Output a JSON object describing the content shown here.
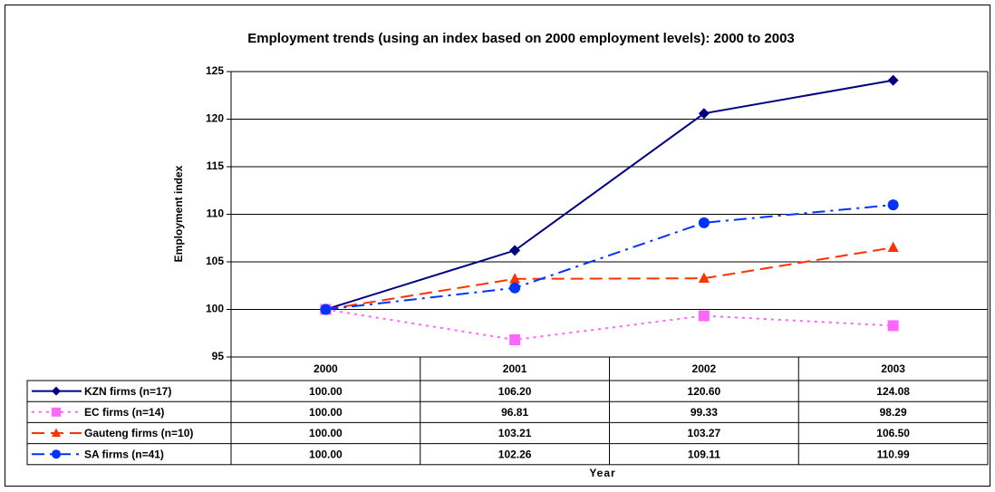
{
  "chart_data": {
    "type": "line",
    "title": "Employment trends (using an index based on 2000 employment levels): 2000 to 2003",
    "y_label": "Employment index",
    "x_label": "Year",
    "categories": [
      "2000",
      "2001",
      "2002",
      "2003"
    ],
    "ylim": [
      95,
      125
    ],
    "yticks": [
      95,
      100,
      105,
      110,
      115,
      120,
      125
    ],
    "grid": true,
    "series": [
      {
        "name": "KZN firms (n=17)",
        "color": "#000080",
        "line_style": "solid",
        "marker": "diamond",
        "values": [
          100,
          106.2,
          120.6,
          124.08
        ],
        "value_labels": [
          "100.00",
          "106.20",
          "120.60",
          "124.08"
        ]
      },
      {
        "name": "EC firms (n=14)",
        "color": "#ff66ff",
        "line_style": "dotted",
        "marker": "square",
        "values": [
          100,
          96.81,
          99.33,
          98.29
        ],
        "value_labels": [
          "100.00",
          "96.81",
          "99.33",
          "98.29"
        ]
      },
      {
        "name": "Gauteng firms (n=10)",
        "color": "#ff3300",
        "line_style": "dashed",
        "marker": "triangle",
        "values": [
          100,
          103.21,
          103.27,
          106.5
        ],
        "value_labels": [
          "100.00",
          "103.21",
          "103.27",
          "106.50"
        ]
      },
      {
        "name": "SA firms (n=41)",
        "color": "#0033ff",
        "line_style": "dashdot",
        "marker": "circle",
        "values": [
          100,
          102.26,
          109.11,
          110.99
        ],
        "value_labels": [
          "100.00",
          "102.26",
          "109.11",
          "110.99"
        ]
      }
    ]
  }
}
